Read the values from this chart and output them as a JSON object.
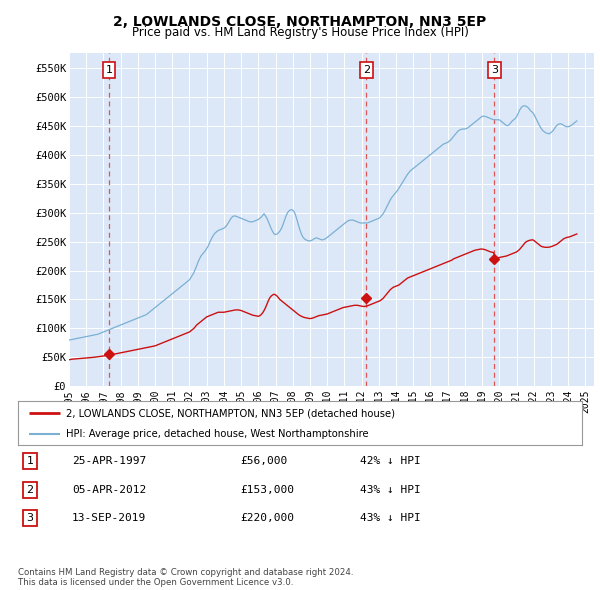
{
  "title": "2, LOWLANDS CLOSE, NORTHAMPTON, NN3 5EP",
  "subtitle": "Price paid vs. HM Land Registry's House Price Index (HPI)",
  "plot_bg_color": "#dce8f8",
  "yticks": [
    0,
    50000,
    100000,
    150000,
    200000,
    250000,
    300000,
    350000,
    400000,
    450000,
    500000,
    550000
  ],
  "ytick_labels": [
    "£0",
    "£50K",
    "£100K",
    "£150K",
    "£200K",
    "£250K",
    "£300K",
    "£350K",
    "£400K",
    "£450K",
    "£500K",
    "£550K"
  ],
  "xlim_start": 1995.0,
  "xlim_end": 2025.5,
  "ylim": [
    0,
    575000
  ],
  "sale_dates": [
    1997.32,
    2012.27,
    2019.71
  ],
  "sale_prices": [
    56000,
    153000,
    220000
  ],
  "sale_labels": [
    "1",
    "2",
    "3"
  ],
  "vline_dates": [
    1997.32,
    2012.27,
    2019.71
  ],
  "legend_red": "2, LOWLANDS CLOSE, NORTHAMPTON, NN3 5EP (detached house)",
  "legend_blue": "HPI: Average price, detached house, West Northamptonshire",
  "table_rows": [
    {
      "label": "1",
      "date": "25-APR-1997",
      "price": "£56,000",
      "hpi": "42% ↓ HPI"
    },
    {
      "label": "2",
      "date": "05-APR-2012",
      "price": "£153,000",
      "hpi": "43% ↓ HPI"
    },
    {
      "label": "3",
      "date": "13-SEP-2019",
      "price": "£220,000",
      "hpi": "43% ↓ HPI"
    }
  ],
  "footer": "Contains HM Land Registry data © Crown copyright and database right 2024.\nThis data is licensed under the Open Government Licence v3.0.",
  "hpi_x": [
    1995.0,
    1995.083,
    1995.167,
    1995.25,
    1995.333,
    1995.417,
    1995.5,
    1995.583,
    1995.667,
    1995.75,
    1995.833,
    1995.917,
    1996.0,
    1996.083,
    1996.167,
    1996.25,
    1996.333,
    1996.417,
    1996.5,
    1996.583,
    1996.667,
    1996.75,
    1996.833,
    1996.917,
    1997.0,
    1997.083,
    1997.167,
    1997.25,
    1997.333,
    1997.417,
    1997.5,
    1997.583,
    1997.667,
    1997.75,
    1997.833,
    1997.917,
    1998.0,
    1998.083,
    1998.167,
    1998.25,
    1998.333,
    1998.417,
    1998.5,
    1998.583,
    1998.667,
    1998.75,
    1998.833,
    1998.917,
    1999.0,
    1999.083,
    1999.167,
    1999.25,
    1999.333,
    1999.417,
    1999.5,
    1999.583,
    1999.667,
    1999.75,
    1999.833,
    1999.917,
    2000.0,
    2000.083,
    2000.167,
    2000.25,
    2000.333,
    2000.417,
    2000.5,
    2000.583,
    2000.667,
    2000.75,
    2000.833,
    2000.917,
    2001.0,
    2001.083,
    2001.167,
    2001.25,
    2001.333,
    2001.417,
    2001.5,
    2001.583,
    2001.667,
    2001.75,
    2001.833,
    2001.917,
    2002.0,
    2002.083,
    2002.167,
    2002.25,
    2002.333,
    2002.417,
    2002.5,
    2002.583,
    2002.667,
    2002.75,
    2002.833,
    2002.917,
    2003.0,
    2003.083,
    2003.167,
    2003.25,
    2003.333,
    2003.417,
    2003.5,
    2003.583,
    2003.667,
    2003.75,
    2003.833,
    2003.917,
    2004.0,
    2004.083,
    2004.167,
    2004.25,
    2004.333,
    2004.417,
    2004.5,
    2004.583,
    2004.667,
    2004.75,
    2004.833,
    2004.917,
    2005.0,
    2005.083,
    2005.167,
    2005.25,
    2005.333,
    2005.417,
    2005.5,
    2005.583,
    2005.667,
    2005.75,
    2005.833,
    2005.917,
    2006.0,
    2006.083,
    2006.167,
    2006.25,
    2006.333,
    2006.417,
    2006.5,
    2006.583,
    2006.667,
    2006.75,
    2006.833,
    2006.917,
    2007.0,
    2007.083,
    2007.167,
    2007.25,
    2007.333,
    2007.417,
    2007.5,
    2007.583,
    2007.667,
    2007.75,
    2007.833,
    2007.917,
    2008.0,
    2008.083,
    2008.167,
    2008.25,
    2008.333,
    2008.417,
    2008.5,
    2008.583,
    2008.667,
    2008.75,
    2008.833,
    2008.917,
    2009.0,
    2009.083,
    2009.167,
    2009.25,
    2009.333,
    2009.417,
    2009.5,
    2009.583,
    2009.667,
    2009.75,
    2009.833,
    2009.917,
    2010.0,
    2010.083,
    2010.167,
    2010.25,
    2010.333,
    2010.417,
    2010.5,
    2010.583,
    2010.667,
    2010.75,
    2010.833,
    2010.917,
    2011.0,
    2011.083,
    2011.167,
    2011.25,
    2011.333,
    2011.417,
    2011.5,
    2011.583,
    2011.667,
    2011.75,
    2011.833,
    2011.917,
    2012.0,
    2012.083,
    2012.167,
    2012.25,
    2012.333,
    2012.417,
    2012.5,
    2012.583,
    2012.667,
    2012.75,
    2012.833,
    2012.917,
    2013.0,
    2013.083,
    2013.167,
    2013.25,
    2013.333,
    2013.417,
    2013.5,
    2013.583,
    2013.667,
    2013.75,
    2013.833,
    2013.917,
    2014.0,
    2014.083,
    2014.167,
    2014.25,
    2014.333,
    2014.417,
    2014.5,
    2014.583,
    2014.667,
    2014.75,
    2014.833,
    2014.917,
    2015.0,
    2015.083,
    2015.167,
    2015.25,
    2015.333,
    2015.417,
    2015.5,
    2015.583,
    2015.667,
    2015.75,
    2015.833,
    2015.917,
    2016.0,
    2016.083,
    2016.167,
    2016.25,
    2016.333,
    2016.417,
    2016.5,
    2016.583,
    2016.667,
    2016.75,
    2016.833,
    2016.917,
    2017.0,
    2017.083,
    2017.167,
    2017.25,
    2017.333,
    2017.417,
    2017.5,
    2017.583,
    2017.667,
    2017.75,
    2017.833,
    2017.917,
    2018.0,
    2018.083,
    2018.167,
    2018.25,
    2018.333,
    2018.417,
    2018.5,
    2018.583,
    2018.667,
    2018.75,
    2018.833,
    2018.917,
    2019.0,
    2019.083,
    2019.167,
    2019.25,
    2019.333,
    2019.417,
    2019.5,
    2019.583,
    2019.667,
    2019.75,
    2019.833,
    2019.917,
    2020.0,
    2020.083,
    2020.167,
    2020.25,
    2020.333,
    2020.417,
    2020.5,
    2020.583,
    2020.667,
    2020.75,
    2020.833,
    2020.917,
    2021.0,
    2021.083,
    2021.167,
    2021.25,
    2021.333,
    2021.417,
    2021.5,
    2021.583,
    2021.667,
    2021.75,
    2021.833,
    2021.917,
    2022.0,
    2022.083,
    2022.167,
    2022.25,
    2022.333,
    2022.417,
    2022.5,
    2022.583,
    2022.667,
    2022.75,
    2022.833,
    2022.917,
    2023.0,
    2023.083,
    2023.167,
    2023.25,
    2023.333,
    2023.417,
    2023.5,
    2023.583,
    2023.667,
    2023.75,
    2023.833,
    2023.917,
    2024.0,
    2024.083,
    2024.167,
    2024.25,
    2024.333,
    2024.417,
    2024.5
  ],
  "hpi_y": [
    80000,
    80500,
    81000,
    81500,
    82000,
    82500,
    83000,
    83500,
    84000,
    84500,
    85000,
    85500,
    86000,
    86500,
    87000,
    87500,
    88000,
    88500,
    89000,
    89500,
    90000,
    91000,
    92000,
    93000,
    94000,
    95000,
    96000,
    97000,
    98000,
    99000,
    100000,
    101000,
    102000,
    103000,
    104000,
    105000,
    106000,
    107000,
    108000,
    109000,
    110000,
    111000,
    112000,
    113000,
    114000,
    115000,
    116000,
    117000,
    118000,
    119000,
    120000,
    121000,
    122000,
    123000,
    124000,
    126000,
    128000,
    130000,
    132000,
    134000,
    136000,
    138000,
    140000,
    142000,
    144000,
    146000,
    148000,
    150000,
    152000,
    154000,
    156000,
    158000,
    160000,
    162000,
    164000,
    166000,
    168000,
    170000,
    172000,
    174000,
    176000,
    178000,
    180000,
    182000,
    184000,
    188000,
    192000,
    196000,
    202000,
    208000,
    215000,
    220000,
    225000,
    228000,
    231000,
    234000,
    238000,
    242000,
    248000,
    253000,
    258000,
    262000,
    265000,
    267000,
    269000,
    270000,
    271000,
    272000,
    273000,
    275000,
    278000,
    282000,
    286000,
    290000,
    293000,
    294000,
    294000,
    293000,
    292000,
    291000,
    290000,
    289000,
    288000,
    287000,
    286000,
    285000,
    284000,
    284000,
    284000,
    285000,
    286000,
    287000,
    288000,
    290000,
    292000,
    295000,
    298000,
    294000,
    290000,
    284000,
    278000,
    272000,
    267000,
    263000,
    262000,
    263000,
    265000,
    268000,
    272000,
    278000,
    285000,
    292000,
    298000,
    302000,
    304000,
    305000,
    304000,
    301000,
    295000,
    287000,
    278000,
    270000,
    263000,
    258000,
    255000,
    253000,
    252000,
    251000,
    251000,
    252000,
    253000,
    255000,
    256000,
    256000,
    255000,
    254000,
    253000,
    253000,
    254000,
    255000,
    257000,
    259000,
    261000,
    263000,
    265000,
    267000,
    269000,
    271000,
    273000,
    275000,
    277000,
    279000,
    281000,
    283000,
    285000,
    286000,
    287000,
    287000,
    287000,
    286000,
    285000,
    284000,
    283000,
    282000,
    282000,
    282000,
    282000,
    282000,
    282000,
    283000,
    284000,
    285000,
    286000,
    287000,
    288000,
    289000,
    290000,
    292000,
    295000,
    298000,
    302000,
    307000,
    312000,
    317000,
    322000,
    326000,
    329000,
    332000,
    335000,
    338000,
    342000,
    346000,
    350000,
    354000,
    358000,
    362000,
    366000,
    369000,
    372000,
    374000,
    376000,
    378000,
    380000,
    382000,
    384000,
    386000,
    388000,
    390000,
    392000,
    394000,
    396000,
    398000,
    400000,
    402000,
    404000,
    406000,
    408000,
    410000,
    412000,
    414000,
    416000,
    418000,
    419000,
    420000,
    421000,
    423000,
    425000,
    428000,
    431000,
    434000,
    437000,
    440000,
    442000,
    443000,
    444000,
    444000,
    444000,
    445000,
    446000,
    448000,
    450000,
    452000,
    454000,
    456000,
    458000,
    460000,
    462000,
    464000,
    466000,
    466000,
    466000,
    465000,
    464000,
    463000,
    462000,
    461000,
    460000,
    460000,
    460000,
    460000,
    460000,
    458000,
    456000,
    454000,
    452000,
    450000,
    450000,
    452000,
    455000,
    458000,
    460000,
    462000,
    465000,
    470000,
    476000,
    480000,
    483000,
    484000,
    484000,
    483000,
    481000,
    478000,
    475000,
    473000,
    470000,
    465000,
    460000,
    455000,
    450000,
    446000,
    442000,
    440000,
    438000,
    437000,
    436000,
    436000,
    438000,
    440000,
    443000,
    447000,
    450000,
    452000,
    453000,
    453000,
    452000,
    450000,
    449000,
    448000,
    448000,
    449000,
    450000,
    452000,
    454000,
    456000,
    458000
  ],
  "red_x": [
    1995.0,
    1995.083,
    1995.167,
    1995.25,
    1995.333,
    1995.417,
    1995.5,
    1995.583,
    1995.667,
    1995.75,
    1995.833,
    1995.917,
    1996.0,
    1996.083,
    1996.167,
    1996.25,
    1996.333,
    1996.417,
    1996.5,
    1996.583,
    1996.667,
    1996.75,
    1996.833,
    1996.917,
    1997.0,
    1997.083,
    1997.167,
    1997.25,
    1997.333,
    1997.417,
    1997.5,
    1997.583,
    1997.667,
    1997.75,
    1997.833,
    1997.917,
    1998.0,
    1998.083,
    1998.167,
    1998.25,
    1998.333,
    1998.417,
    1998.5,
    1998.583,
    1998.667,
    1998.75,
    1998.833,
    1998.917,
    1999.0,
    1999.083,
    1999.167,
    1999.25,
    1999.333,
    1999.417,
    1999.5,
    1999.583,
    1999.667,
    1999.75,
    1999.833,
    1999.917,
    2000.0,
    2000.083,
    2000.167,
    2000.25,
    2000.333,
    2000.417,
    2000.5,
    2000.583,
    2000.667,
    2000.75,
    2000.833,
    2000.917,
    2001.0,
    2001.083,
    2001.167,
    2001.25,
    2001.333,
    2001.417,
    2001.5,
    2001.583,
    2001.667,
    2001.75,
    2001.833,
    2001.917,
    2002.0,
    2002.083,
    2002.167,
    2002.25,
    2002.333,
    2002.417,
    2002.5,
    2002.583,
    2002.667,
    2002.75,
    2002.833,
    2002.917,
    2003.0,
    2003.083,
    2003.167,
    2003.25,
    2003.333,
    2003.417,
    2003.5,
    2003.583,
    2003.667,
    2003.75,
    2003.833,
    2003.917,
    2004.0,
    2004.083,
    2004.167,
    2004.25,
    2004.333,
    2004.417,
    2004.5,
    2004.583,
    2004.667,
    2004.75,
    2004.833,
    2004.917,
    2005.0,
    2005.083,
    2005.167,
    2005.25,
    2005.333,
    2005.417,
    2005.5,
    2005.583,
    2005.667,
    2005.75,
    2005.833,
    2005.917,
    2006.0,
    2006.083,
    2006.167,
    2006.25,
    2006.333,
    2006.417,
    2006.5,
    2006.583,
    2006.667,
    2006.75,
    2006.833,
    2006.917,
    2007.0,
    2007.083,
    2007.167,
    2007.25,
    2007.333,
    2007.417,
    2007.5,
    2007.583,
    2007.667,
    2007.75,
    2007.833,
    2007.917,
    2008.0,
    2008.083,
    2008.167,
    2008.25,
    2008.333,
    2008.417,
    2008.5,
    2008.583,
    2008.667,
    2008.75,
    2008.833,
    2008.917,
    2009.0,
    2009.083,
    2009.167,
    2009.25,
    2009.333,
    2009.417,
    2009.5,
    2009.583,
    2009.667,
    2009.75,
    2009.833,
    2009.917,
    2010.0,
    2010.083,
    2010.167,
    2010.25,
    2010.333,
    2010.417,
    2010.5,
    2010.583,
    2010.667,
    2010.75,
    2010.833,
    2010.917,
    2011.0,
    2011.083,
    2011.167,
    2011.25,
    2011.333,
    2011.417,
    2011.5,
    2011.583,
    2011.667,
    2011.75,
    2011.833,
    2011.917,
    2012.0,
    2012.083,
    2012.167,
    2012.25,
    2012.333,
    2012.417,
    2012.5,
    2012.583,
    2012.667,
    2012.75,
    2012.833,
    2012.917,
    2013.0,
    2013.083,
    2013.167,
    2013.25,
    2013.333,
    2013.417,
    2013.5,
    2013.583,
    2013.667,
    2013.75,
    2013.833,
    2013.917,
    2014.0,
    2014.083,
    2014.167,
    2014.25,
    2014.333,
    2014.417,
    2014.5,
    2014.583,
    2014.667,
    2014.75,
    2014.833,
    2014.917,
    2015.0,
    2015.083,
    2015.167,
    2015.25,
    2015.333,
    2015.417,
    2015.5,
    2015.583,
    2015.667,
    2015.75,
    2015.833,
    2015.917,
    2016.0,
    2016.083,
    2016.167,
    2016.25,
    2016.333,
    2016.417,
    2016.5,
    2016.583,
    2016.667,
    2016.75,
    2016.833,
    2016.917,
    2017.0,
    2017.083,
    2017.167,
    2017.25,
    2017.333,
    2017.417,
    2017.5,
    2017.583,
    2017.667,
    2017.75,
    2017.833,
    2017.917,
    2018.0,
    2018.083,
    2018.167,
    2018.25,
    2018.333,
    2018.417,
    2018.5,
    2018.583,
    2018.667,
    2018.75,
    2018.833,
    2018.917,
    2019.0,
    2019.083,
    2019.167,
    2019.25,
    2019.333,
    2019.417,
    2019.5,
    2019.583,
    2019.667,
    2019.75,
    2019.833,
    2019.917,
    2020.0,
    2020.083,
    2020.167,
    2020.25,
    2020.333,
    2020.417,
    2020.5,
    2020.583,
    2020.667,
    2020.75,
    2020.833,
    2020.917,
    2021.0,
    2021.083,
    2021.167,
    2021.25,
    2021.333,
    2021.417,
    2021.5,
    2021.583,
    2021.667,
    2021.75,
    2021.833,
    2021.917,
    2022.0,
    2022.083,
    2022.167,
    2022.25,
    2022.333,
    2022.417,
    2022.5,
    2022.583,
    2022.667,
    2022.75,
    2022.833,
    2022.917,
    2023.0,
    2023.083,
    2023.167,
    2023.25,
    2023.333,
    2023.417,
    2023.5,
    2023.583,
    2023.667,
    2023.75,
    2023.833,
    2023.917,
    2024.0,
    2024.083,
    2024.167,
    2024.25,
    2024.333,
    2024.417,
    2024.5
  ],
  "red_y": [
    46000,
    46500,
    47000,
    47200,
    47400,
    47600,
    47800,
    48000,
    48200,
    48400,
    48600,
    48800,
    49000,
    49200,
    49500,
    49800,
    50000,
    50200,
    50500,
    50800,
    51200,
    51500,
    51800,
    52000,
    52500,
    53000,
    53500,
    54000,
    56000,
    54500,
    55000,
    55500,
    56000,
    56500,
    57000,
    57500,
    58000,
    58500,
    59000,
    59500,
    60000,
    60500,
    61000,
    61500,
    62000,
    62500,
    63000,
    63500,
    64000,
    64500,
    65000,
    65500,
    66000,
    66500,
    67000,
    67500,
    68000,
    68500,
    69000,
    69500,
    70000,
    71000,
    72000,
    73000,
    74000,
    75000,
    76000,
    77000,
    78000,
    79000,
    80000,
    81000,
    82000,
    83000,
    84000,
    85000,
    86000,
    87000,
    88000,
    89000,
    90000,
    91000,
    92000,
    93000,
    94000,
    96000,
    98000,
    100000,
    103000,
    106000,
    108000,
    110000,
    112000,
    114000,
    116000,
    118000,
    120000,
    121000,
    122000,
    123000,
    124000,
    125000,
    126000,
    127000,
    128000,
    128000,
    128000,
    128000,
    128000,
    128500,
    129000,
    129500,
    130000,
    130500,
    131000,
    131500,
    132000,
    132000,
    132000,
    131500,
    131000,
    130000,
    129000,
    128000,
    127000,
    126000,
    125000,
    124000,
    123000,
    122500,
    122000,
    121500,
    121000,
    122000,
    124000,
    127000,
    131000,
    136000,
    142000,
    148000,
    153000,
    156000,
    158000,
    159000,
    158000,
    156000,
    153000,
    150000,
    148000,
    146000,
    144000,
    142000,
    140000,
    138000,
    136000,
    134000,
    132000,
    130000,
    128000,
    126000,
    124000,
    122500,
    121000,
    120000,
    119000,
    118500,
    118000,
    117500,
    117000,
    117500,
    118000,
    119000,
    120000,
    121000,
    122000,
    122500,
    123000,
    123500,
    124000,
    124500,
    125000,
    126000,
    127000,
    128000,
    129000,
    130000,
    131000,
    132000,
    133000,
    134000,
    135000,
    136000,
    136500,
    137000,
    137500,
    138000,
    138500,
    139000,
    139500,
    140000,
    140000,
    140000,
    139500,
    139000,
    138500,
    138000,
    138000,
    138500,
    139000,
    140000,
    141000,
    142000,
    143000,
    144000,
    145000,
    146000,
    147000,
    148000,
    150000,
    152000,
    155000,
    158000,
    161000,
    164000,
    167000,
    169000,
    171000,
    172000,
    173000,
    174000,
    175000,
    177000,
    179000,
    181000,
    183000,
    185000,
    187000,
    188000,
    189000,
    190000,
    191000,
    192000,
    193000,
    194000,
    195000,
    196000,
    197000,
    198000,
    199000,
    200000,
    201000,
    202000,
    203000,
    204000,
    205000,
    206000,
    207000,
    208000,
    209000,
    210000,
    211000,
    212000,
    213000,
    214000,
    215000,
    216000,
    217000,
    218000,
    220000,
    221000,
    222000,
    223000,
    224000,
    225000,
    226000,
    227000,
    228000,
    229000,
    230000,
    231000,
    232000,
    233000,
    234000,
    235000,
    235500,
    236000,
    236500,
    237000,
    237000,
    236500,
    236000,
    235000,
    234000,
    233000,
    232000,
    231500,
    231000,
    220000,
    221000,
    222000,
    222500,
    223000,
    223500,
    224000,
    224500,
    225000,
    226000,
    227000,
    228000,
    229000,
    230000,
    231000,
    232000,
    234000,
    236000,
    239000,
    242000,
    245000,
    248000,
    250000,
    251000,
    252000,
    252500,
    253000,
    252000,
    250000,
    248000,
    246000,
    244000,
    242000,
    241000,
    240500,
    240000,
    240000,
    240000,
    240500,
    241000,
    242000,
    243000,
    244000,
    245000,
    247000,
    249000,
    251000,
    253000,
    255000,
    256000,
    257000,
    257500,
    258000,
    259000,
    260000,
    261000,
    262000,
    263000
  ]
}
